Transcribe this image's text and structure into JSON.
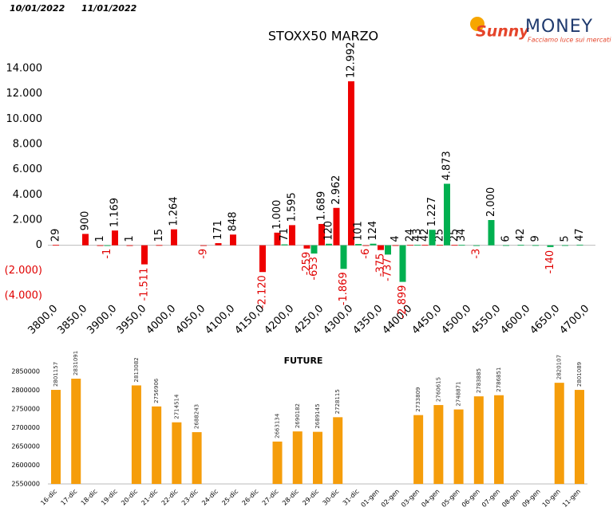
{
  "header": {
    "date_left": "10/01/2022",
    "date_right": "11/01/2022",
    "logo_word1": "Sunny",
    "logo_word2": "MONEY",
    "logo_tagline": "Facciamo luce sui mercati"
  },
  "chart_data": [
    {
      "type": "bar",
      "title": "STOXX50 MARZO",
      "categories": [
        "3800,0",
        null,
        "3850,0",
        null,
        "3900,0",
        null,
        "3950,0",
        null,
        "4000,0",
        null,
        "4050,0",
        null,
        "4100,0",
        null,
        "4150,0",
        null,
        "4200,0",
        null,
        "4250,0",
        null,
        "4300,0",
        null,
        "4350,0",
        null,
        "4400,0",
        null,
        "4450,0",
        null,
        "4500,0",
        null,
        "4550,0",
        null,
        "4600,0",
        null,
        "4650,0",
        null,
        "4700,0"
      ],
      "series": [
        {
          "color": "#ee0000",
          "values": [
            29,
            null,
            900,
            1,
            1169,
            1,
            -1511,
            15,
            1264,
            null,
            -9,
            171,
            848,
            null,
            -2120,
            1000,
            1595,
            -259,
            1689,
            2962,
            12992,
            -6,
            -375,
            4,
            24,
            42,
            25,
            25,
            null,
            null,
            null,
            null,
            null,
            null,
            null,
            null,
            null
          ],
          "value_labels": [
            "29",
            null,
            "900",
            "1",
            "1.169",
            "1",
            "-1.511",
            "15",
            "1.264",
            null,
            "-9",
            "171",
            "848",
            null,
            "-2.120",
            "1.000",
            "1.595",
            "-259",
            "1.689",
            "2.962",
            "12.992",
            "-6",
            "-375",
            "4",
            "24",
            "42",
            "25",
            "25",
            null,
            null,
            null,
            null,
            null,
            null,
            null,
            null,
            null
          ]
        },
        {
          "color": "#00b050",
          "values": [
            null,
            null,
            null,
            -1,
            null,
            null,
            null,
            null,
            null,
            null,
            null,
            null,
            null,
            null,
            null,
            71,
            null,
            -653,
            120,
            -1869,
            101,
            124,
            -737,
            -2899,
            43,
            1227,
            4873,
            34,
            -3,
            2000,
            6,
            42,
            9,
            -140,
            5,
            47,
            null
          ],
          "value_labels": [
            null,
            null,
            null,
            "-1",
            null,
            null,
            null,
            null,
            null,
            null,
            null,
            null,
            null,
            null,
            null,
            "71",
            null,
            "-653",
            "120",
            "-1.869",
            "101",
            "124",
            "-737",
            "-2.899",
            "43",
            "1.227",
            "4.873",
            "34",
            "-3",
            "2.000",
            "6",
            "42",
            "9",
            "-140",
            "5",
            "47",
            null
          ]
        }
      ],
      "ylim": [
        -4000,
        14000
      ],
      "yticks": [
        {
          "value": 14000,
          "label": "14.000"
        },
        {
          "value": 12000,
          "label": "12.000"
        },
        {
          "value": 10000,
          "label": "10.000"
        },
        {
          "value": 8000,
          "label": "8.000"
        },
        {
          "value": 6000,
          "label": "6.000"
        },
        {
          "value": 4000,
          "label": "4.000"
        },
        {
          "value": 2000,
          "label": "2.000"
        },
        0,
        {
          "value": -2000,
          "label": "(2.000)"
        },
        {
          "value": -4000,
          "label": "(4.000)"
        }
      ]
    },
    {
      "type": "bar",
      "title": "FUTURE",
      "color": "#f59d0b",
      "categories": [
        "16-dic",
        "17-dic",
        "18-dic",
        "19-dic",
        "20-dic",
        "21-dic",
        "22-dic",
        "23-dic",
        "24-dic",
        "25-dic",
        "26-dic",
        "27-dic",
        "28-dic",
        "29-dic",
        "30-dic",
        "31-dic",
        "01-gen",
        "02-gen",
        "03-gen",
        "04-gen",
        "05-gen",
        "06-gen",
        "07-gen",
        "08-gen",
        "09-gen",
        "10-gen",
        "11-gen"
      ],
      "values": [
        2801157,
        2831091,
        null,
        null,
        2813082,
        2756906,
        2714514,
        2688243,
        null,
        null,
        null,
        2663134,
        2690182,
        2689145,
        2728115,
        null,
        null,
        null,
        2733809,
        2760615,
        2748871,
        2783885,
        2786851,
        null,
        null,
        2820107,
        2801089
      ],
      "ylim": [
        2550000,
        2880000
      ],
      "yticks": [
        2550000,
        2600000,
        2650000,
        2700000,
        2750000,
        2800000,
        2850000
      ]
    }
  ]
}
